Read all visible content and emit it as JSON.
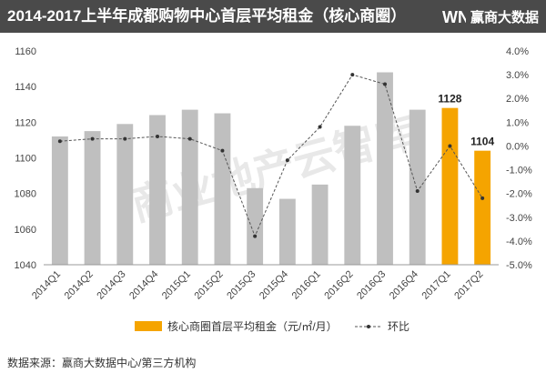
{
  "header": {
    "title": "2014-2017上半年成都购物中心首层平均租金（核心商圈）",
    "logo_letters": "WN",
    "logo_text": "赢商大数据"
  },
  "watermark": "商业地产云智库",
  "source": {
    "label": "数据来源：",
    "text": "赢商大数据中心/第三方机构"
  },
  "colors": {
    "bar_default": "#bfbfbf",
    "bar_highlight": "#f5a400",
    "line": "#555555",
    "header_bg": "#4a4a4a"
  },
  "chart_data": {
    "type": "bar",
    "categories": [
      "2014Q1",
      "2014Q2",
      "2014Q3",
      "2014Q4",
      "2015Q1",
      "2015Q2",
      "2015Q3",
      "2015Q4",
      "2016Q1",
      "2016Q2",
      "2016Q3",
      "2016Q4",
      "2017Q1",
      "2017Q2"
    ],
    "series": [
      {
        "name": "核心商圈首层平均租金（元/㎡/月）",
        "type": "bar",
        "axis": "left",
        "values": [
          1112,
          1115,
          1119,
          1124,
          1127,
          1125,
          1083,
          1077,
          1085,
          1118,
          1148,
          1127,
          1128,
          1104
        ],
        "highlight": [
          12,
          13
        ]
      },
      {
        "name": "环比",
        "type": "line",
        "axis": "right",
        "values": [
          0.2,
          0.3,
          0.3,
          0.4,
          0.3,
          -0.2,
          -3.8,
          -0.6,
          0.8,
          3.0,
          2.6,
          -1.9,
          0.0,
          -2.2
        ]
      }
    ],
    "data_labels": [
      {
        "index": 12,
        "text": "1128"
      },
      {
        "index": 13,
        "text": "1104"
      }
    ],
    "y_left": {
      "min": 1040,
      "max": 1160,
      "ticks": [
        "1040",
        "1060",
        "1080",
        "1100",
        "1120",
        "1140",
        "1160"
      ]
    },
    "y_right": {
      "min": -5,
      "max": 4,
      "ticks": [
        "-5.0%",
        "-4.0%",
        "-3.0%",
        "-2.0%",
        "-1.0%",
        "0.0%",
        "1.0%",
        "2.0%",
        "3.0%",
        "4.0%"
      ]
    },
    "grid": false,
    "legend_position": "bottom"
  }
}
